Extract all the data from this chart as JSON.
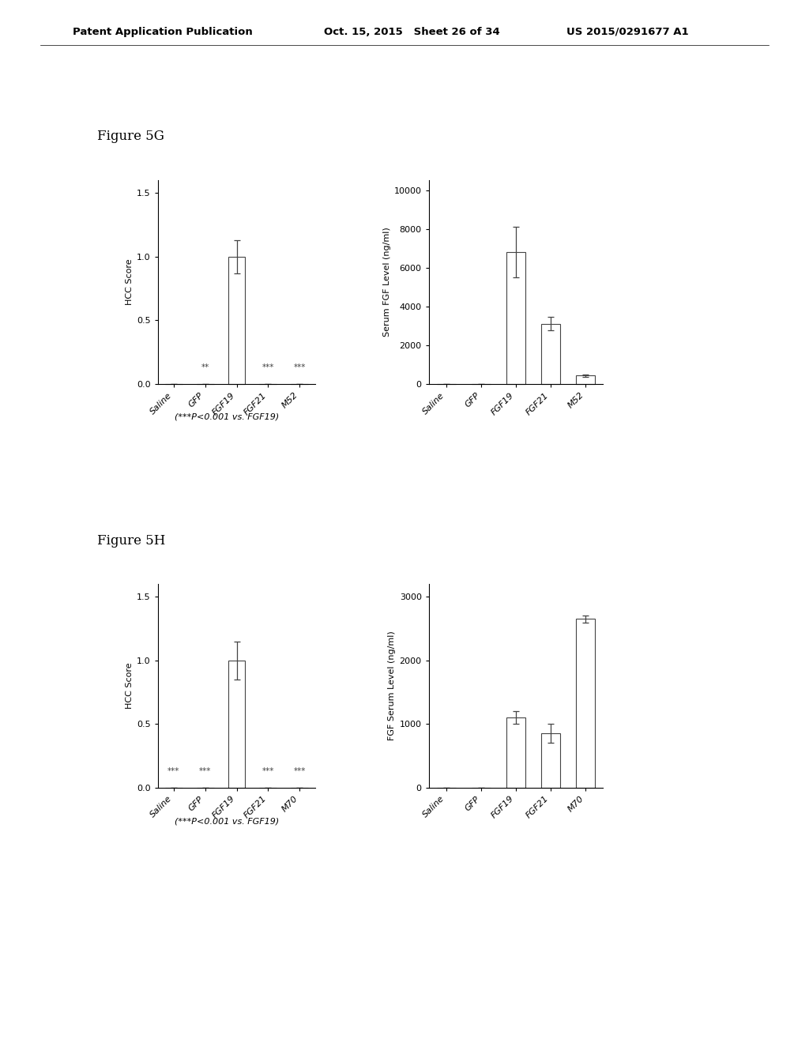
{
  "fig5G_left": {
    "categories": [
      "Saline",
      "GFP",
      "FGF19",
      "FGF21",
      "M52"
    ],
    "values": [
      0.0,
      0.0,
      1.0,
      0.0,
      0.0
    ],
    "errors": [
      0.0,
      0.0,
      0.13,
      0.0,
      0.0
    ],
    "ylabel": "HCC Score",
    "ylim": [
      0,
      1.6
    ],
    "yticks": [
      0.0,
      0.5,
      1.0,
      1.5
    ],
    "yticklabels": [
      "0.0",
      "0.5",
      "1.0",
      "1.5"
    ],
    "significance": {
      "GFP": "**",
      "FGF21": "***",
      "M52": "***"
    }
  },
  "fig5G_right": {
    "categories": [
      "Saline",
      "GFP",
      "FGF19",
      "FGF21",
      "M52"
    ],
    "values": [
      0.0,
      0.0,
      6800,
      3100,
      420
    ],
    "errors": [
      0.0,
      0.0,
      1300,
      350,
      80
    ],
    "ylabel": "Serum FGF Level (ng/ml)",
    "ylim": [
      0,
      10500
    ],
    "yticks": [
      0,
      2000,
      4000,
      6000,
      8000,
      10000
    ],
    "yticklabels": [
      "0",
      "2000",
      "4000",
      "6000",
      "8000",
      "10000"
    ],
    "significance": {}
  },
  "fig5H_left": {
    "categories": [
      "Saline",
      "GFP",
      "FGF19",
      "FGF21",
      "M70"
    ],
    "values": [
      0.0,
      0.0,
      1.0,
      0.0,
      0.0
    ],
    "errors": [
      0.0,
      0.0,
      0.15,
      0.0,
      0.0
    ],
    "ylabel": "HCC Score",
    "ylim": [
      0,
      1.6
    ],
    "yticks": [
      0.0,
      0.5,
      1.0,
      1.5
    ],
    "yticklabels": [
      "0.0",
      "0.5",
      "1.0",
      "1.5"
    ],
    "significance": {
      "Saline": "***",
      "GFP": "***",
      "FGF21": "***",
      "M70": "***"
    }
  },
  "fig5H_right": {
    "categories": [
      "Saline",
      "GFP",
      "FGF19",
      "FGF21",
      "M70"
    ],
    "values": [
      0.0,
      0.0,
      1100,
      850,
      2650
    ],
    "errors": [
      0.0,
      0.0,
      100,
      150,
      60
    ],
    "ylabel": "FGF Serum Level (ng/ml)",
    "ylim": [
      0,
      3200
    ],
    "yticks": [
      0,
      1000,
      2000,
      3000
    ],
    "yticklabels": [
      "0",
      "1000",
      "2000",
      "3000"
    ],
    "significance": {}
  },
  "figure5G_label": "Figure 5G",
  "figure5H_label": "Figure 5H",
  "footnote5G": "(***P<0.001 vs. FGF19)",
  "footnote5H": "(***P<0.001 vs. FGF19)",
  "header_left": "Patent Application Publication",
  "header_mid": "Oct. 15, 2015   Sheet 26 of 34",
  "header_right": "US 2015/0291677 A1",
  "background_color": "#ffffff",
  "bar_color": "#ffffff",
  "bar_edgecolor": "#444444",
  "text_color": "#000000"
}
